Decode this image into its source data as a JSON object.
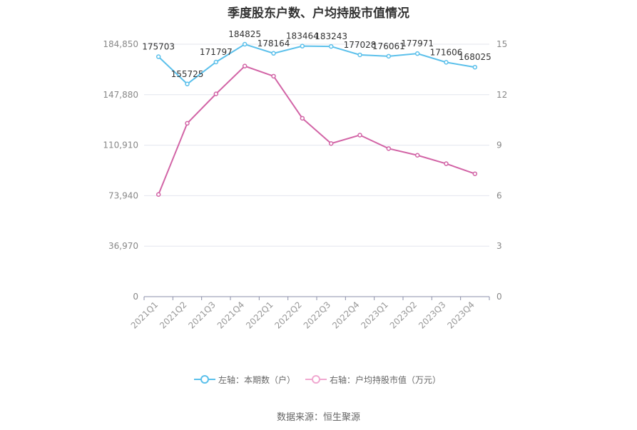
{
  "chart_data": {
    "type": "line",
    "title": "季度股东户数、户均持股市值情况",
    "categories": [
      "2021Q1",
      "2021Q2",
      "2021Q3",
      "2021Q4",
      "2022Q1",
      "2022Q2",
      "2022Q3",
      "2022Q4",
      "2023Q1",
      "2023Q2",
      "2023Q3",
      "2023Q4"
    ],
    "series": [
      {
        "name": "左轴：本期数（户）",
        "axis": "left",
        "color": "#5bc0eb",
        "values": [
          175703,
          155725,
          171797,
          184825,
          178164,
          183464,
          183243,
          177028,
          176061,
          177971,
          171606,
          168025
        ],
        "labels": [
          "175703",
          "155725",
          "171797",
          "184825",
          "178164",
          "183464",
          "183243",
          "177028",
          "176061",
          "177971",
          "171606",
          "168025"
        ]
      },
      {
        "name": "右轴：户均持股市值（万元）",
        "axis": "right",
        "color": "#d264a6",
        "values": [
          6.07,
          10.3,
          12.05,
          13.7,
          13.1,
          10.6,
          9.1,
          9.6,
          8.8,
          8.4,
          7.9,
          7.3
        ]
      }
    ],
    "left_axis": {
      "min": 0,
      "max": 184850,
      "ticks": [
        "0",
        "36,970",
        "73,940",
        "110,910",
        "147,880",
        "184,850"
      ]
    },
    "right_axis": {
      "min": 0,
      "max": 15,
      "ticks": [
        "0",
        "3",
        "6",
        "9",
        "12",
        "15"
      ]
    },
    "grid": true,
    "legend_position": "bottom"
  },
  "source_note": "数据来源：恒生聚源"
}
